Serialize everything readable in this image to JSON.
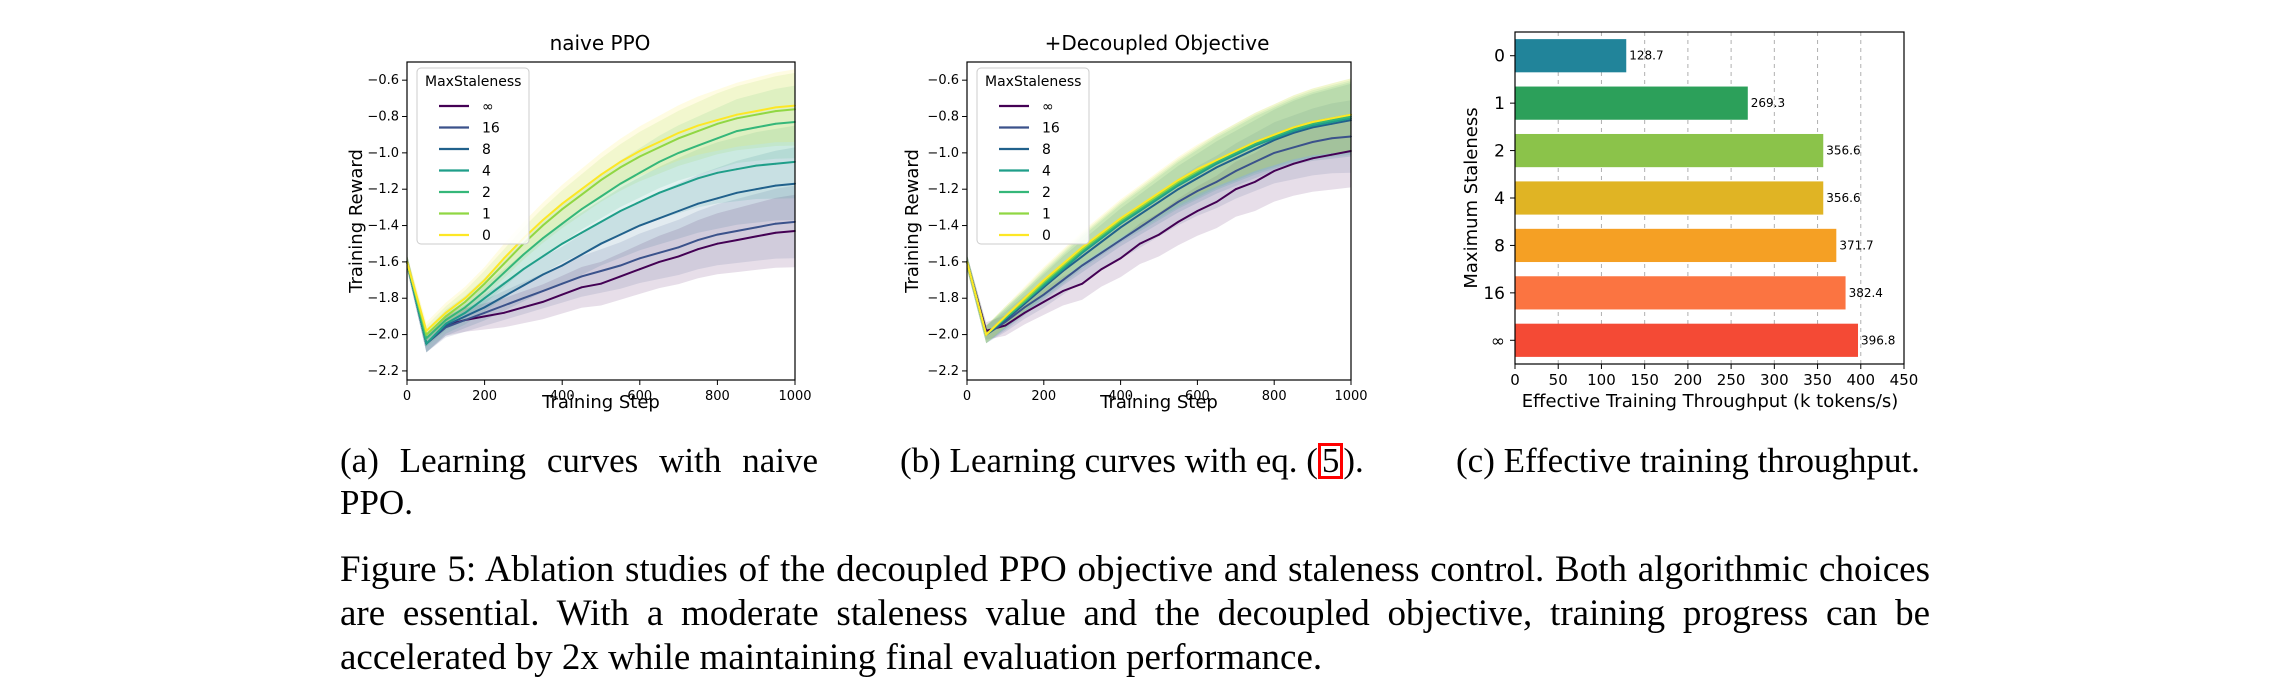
{
  "chart_data": [
    {
      "type": "line",
      "title": "naive PPO",
      "xlabel": "Training Step",
      "ylabel": "Training Reward",
      "xlim": [
        0,
        1000
      ],
      "ylim": [
        -2.25,
        -0.5
      ],
      "xticks": [
        "0",
        "200",
        "400",
        "600",
        "800",
        "1000"
      ],
      "yticks": [
        "−0.6",
        "−0.8",
        "−1.0",
        "−1.2",
        "−1.4",
        "−1.6",
        "−1.8",
        "−2.0",
        "−2.2"
      ],
      "legend_title": "MaxStaleness",
      "legend_position": "top-left",
      "grid": false,
      "x": [
        0,
        50,
        100,
        150,
        200,
        250,
        300,
        350,
        400,
        450,
        500,
        550,
        600,
        650,
        700,
        750,
        800,
        850,
        900,
        950,
        1000
      ],
      "series": [
        {
          "name": "∞",
          "color": "#440154",
          "values": [
            -1.6,
            -2.05,
            -1.95,
            -1.92,
            -1.9,
            -1.88,
            -1.85,
            -1.82,
            -1.78,
            -1.74,
            -1.72,
            -1.68,
            -1.64,
            -1.6,
            -1.57,
            -1.53,
            -1.5,
            -1.48,
            -1.46,
            -1.44,
            -1.43
          ]
        },
        {
          "name": "16",
          "color": "#3b528b",
          "values": [
            -1.6,
            -2.05,
            -1.96,
            -1.92,
            -1.88,
            -1.84,
            -1.8,
            -1.76,
            -1.72,
            -1.68,
            -1.65,
            -1.62,
            -1.58,
            -1.55,
            -1.52,
            -1.48,
            -1.45,
            -1.43,
            -1.41,
            -1.39,
            -1.38
          ]
        },
        {
          "name": "8",
          "color": "#21618c",
          "values": [
            -1.6,
            -2.05,
            -1.95,
            -1.9,
            -1.85,
            -1.79,
            -1.73,
            -1.67,
            -1.62,
            -1.56,
            -1.5,
            -1.45,
            -1.4,
            -1.36,
            -1.32,
            -1.28,
            -1.25,
            -1.22,
            -1.2,
            -1.18,
            -1.17
          ]
        },
        {
          "name": "4",
          "color": "#1f9e89",
          "values": [
            -1.6,
            -2.05,
            -1.94,
            -1.88,
            -1.8,
            -1.72,
            -1.64,
            -1.57,
            -1.5,
            -1.44,
            -1.38,
            -1.32,
            -1.27,
            -1.22,
            -1.18,
            -1.14,
            -1.11,
            -1.09,
            -1.07,
            -1.06,
            -1.05
          ]
        },
        {
          "name": "2",
          "color": "#35b779",
          "values": [
            -1.6,
            -2.02,
            -1.92,
            -1.85,
            -1.76,
            -1.66,
            -1.56,
            -1.47,
            -1.39,
            -1.31,
            -1.24,
            -1.17,
            -1.11,
            -1.05,
            -1.0,
            -0.96,
            -0.92,
            -0.88,
            -0.86,
            -0.84,
            -0.83
          ]
        },
        {
          "name": "1",
          "color": "#90d743",
          "values": [
            -1.6,
            -2.0,
            -1.9,
            -1.82,
            -1.72,
            -1.61,
            -1.5,
            -1.4,
            -1.31,
            -1.23,
            -1.15,
            -1.08,
            -1.02,
            -0.97,
            -0.92,
            -0.88,
            -0.84,
            -0.81,
            -0.79,
            -0.77,
            -0.76
          ]
        },
        {
          "name": "0",
          "color": "#fde725",
          "values": [
            -1.6,
            -1.98,
            -1.88,
            -1.8,
            -1.7,
            -1.58,
            -1.47,
            -1.37,
            -1.28,
            -1.2,
            -1.12,
            -1.05,
            -0.99,
            -0.94,
            -0.89,
            -0.85,
            -0.82,
            -0.79,
            -0.77,
            -0.75,
            -0.74
          ]
        }
      ]
    },
    {
      "type": "line",
      "title": "+Decoupled Objective",
      "xlabel": "Training Step",
      "ylabel": "Training Reward",
      "xlim": [
        0,
        1000
      ],
      "ylim": [
        -2.25,
        -0.5
      ],
      "xticks": [
        "0",
        "200",
        "400",
        "600",
        "800",
        "1000"
      ],
      "yticks": [
        "−0.6",
        "−0.8",
        "−1.0",
        "−1.2",
        "−1.4",
        "−1.6",
        "−1.8",
        "−2.0",
        "−2.2"
      ],
      "legend_title": "MaxStaleness",
      "legend_position": "top-left",
      "grid": false,
      "x": [
        0,
        50,
        100,
        150,
        200,
        250,
        300,
        350,
        400,
        450,
        500,
        550,
        600,
        650,
        700,
        750,
        800,
        850,
        900,
        950,
        1000
      ],
      "series": [
        {
          "name": "∞",
          "color": "#440154",
          "values": [
            -1.6,
            -1.98,
            -1.95,
            -1.88,
            -1.82,
            -1.76,
            -1.72,
            -1.64,
            -1.58,
            -1.5,
            -1.45,
            -1.38,
            -1.32,
            -1.27,
            -1.2,
            -1.16,
            -1.1,
            -1.06,
            -1.03,
            -1.01,
            -0.99
          ]
        },
        {
          "name": "16",
          "color": "#3b528b",
          "values": [
            -1.6,
            -2.0,
            -1.93,
            -1.85,
            -1.78,
            -1.7,
            -1.62,
            -1.55,
            -1.48,
            -1.41,
            -1.34,
            -1.27,
            -1.21,
            -1.16,
            -1.1,
            -1.05,
            -1.0,
            -0.97,
            -0.94,
            -0.92,
            -0.91
          ]
        },
        {
          "name": "8",
          "color": "#21618c",
          "values": [
            -1.6,
            -2.0,
            -1.92,
            -1.83,
            -1.74,
            -1.65,
            -1.57,
            -1.49,
            -1.41,
            -1.34,
            -1.27,
            -1.2,
            -1.14,
            -1.08,
            -1.03,
            -0.98,
            -0.93,
            -0.89,
            -0.86,
            -0.84,
            -0.82
          ]
        },
        {
          "name": "4",
          "color": "#1f9e89",
          "values": [
            -1.6,
            -2.0,
            -1.91,
            -1.82,
            -1.73,
            -1.64,
            -1.55,
            -1.47,
            -1.39,
            -1.32,
            -1.25,
            -1.18,
            -1.12,
            -1.06,
            -1.01,
            -0.96,
            -0.92,
            -0.88,
            -0.85,
            -0.83,
            -0.81
          ]
        },
        {
          "name": "2",
          "color": "#35b779",
          "values": [
            -1.6,
            -2.0,
            -1.91,
            -1.82,
            -1.72,
            -1.63,
            -1.54,
            -1.46,
            -1.38,
            -1.31,
            -1.24,
            -1.17,
            -1.11,
            -1.05,
            -1.0,
            -0.95,
            -0.91,
            -0.87,
            -0.84,
            -0.82,
            -0.8
          ]
        },
        {
          "name": "1",
          "color": "#90d743",
          "values": [
            -1.6,
            -2.0,
            -1.9,
            -1.81,
            -1.71,
            -1.62,
            -1.53,
            -1.45,
            -1.37,
            -1.3,
            -1.23,
            -1.16,
            -1.1,
            -1.04,
            -0.99,
            -0.94,
            -0.9,
            -0.86,
            -0.83,
            -0.81,
            -0.79
          ]
        },
        {
          "name": "0",
          "color": "#fde725",
          "values": [
            -1.6,
            -2.0,
            -1.9,
            -1.8,
            -1.7,
            -1.61,
            -1.52,
            -1.44,
            -1.36,
            -1.29,
            -1.22,
            -1.15,
            -1.09,
            -1.04,
            -0.99,
            -0.94,
            -0.9,
            -0.86,
            -0.83,
            -0.81,
            -0.79
          ]
        }
      ]
    },
    {
      "type": "bar",
      "orientation": "horizontal",
      "xlabel": "Effective Training Throughput (k tokens/s)",
      "ylabel": "Maximum Staleness",
      "xlim": [
        0,
        450
      ],
      "xticks": [
        "0",
        "50",
        "100",
        "150",
        "200",
        "250",
        "300",
        "350",
        "400",
        "450"
      ],
      "grid": true,
      "categories": [
        "0",
        "1",
        "2",
        "4",
        "8",
        "16",
        "∞"
      ],
      "values": [
        128.7,
        269.3,
        356.6,
        356.6,
        371.7,
        382.4,
        396.8
      ],
      "value_labels": [
        "128.7",
        "269.3",
        "356.6",
        "356.6",
        "371.7",
        "382.4",
        "396.8"
      ],
      "colors": [
        "#21849a",
        "#2ca05a",
        "#8bc34a",
        "#e0b424",
        "#f5a024",
        "#fb7441",
        "#f44a35"
      ]
    }
  ],
  "captions": {
    "a": "(a) Learning curves with naive PPO.",
    "b_prefix": "(b) Learning curves with eq. (",
    "b_ref": "5",
    "b_suffix": ").",
    "c": "(c) Effective training throughput.",
    "figure": "Figure 5: Ablation studies of the decoupled PPO objective and staleness control. Both algorithmic choices are essential. With a moderate staleness value and the decoupled objective, training progress can be accelerated by 2x while maintaining final evaluation performance."
  }
}
